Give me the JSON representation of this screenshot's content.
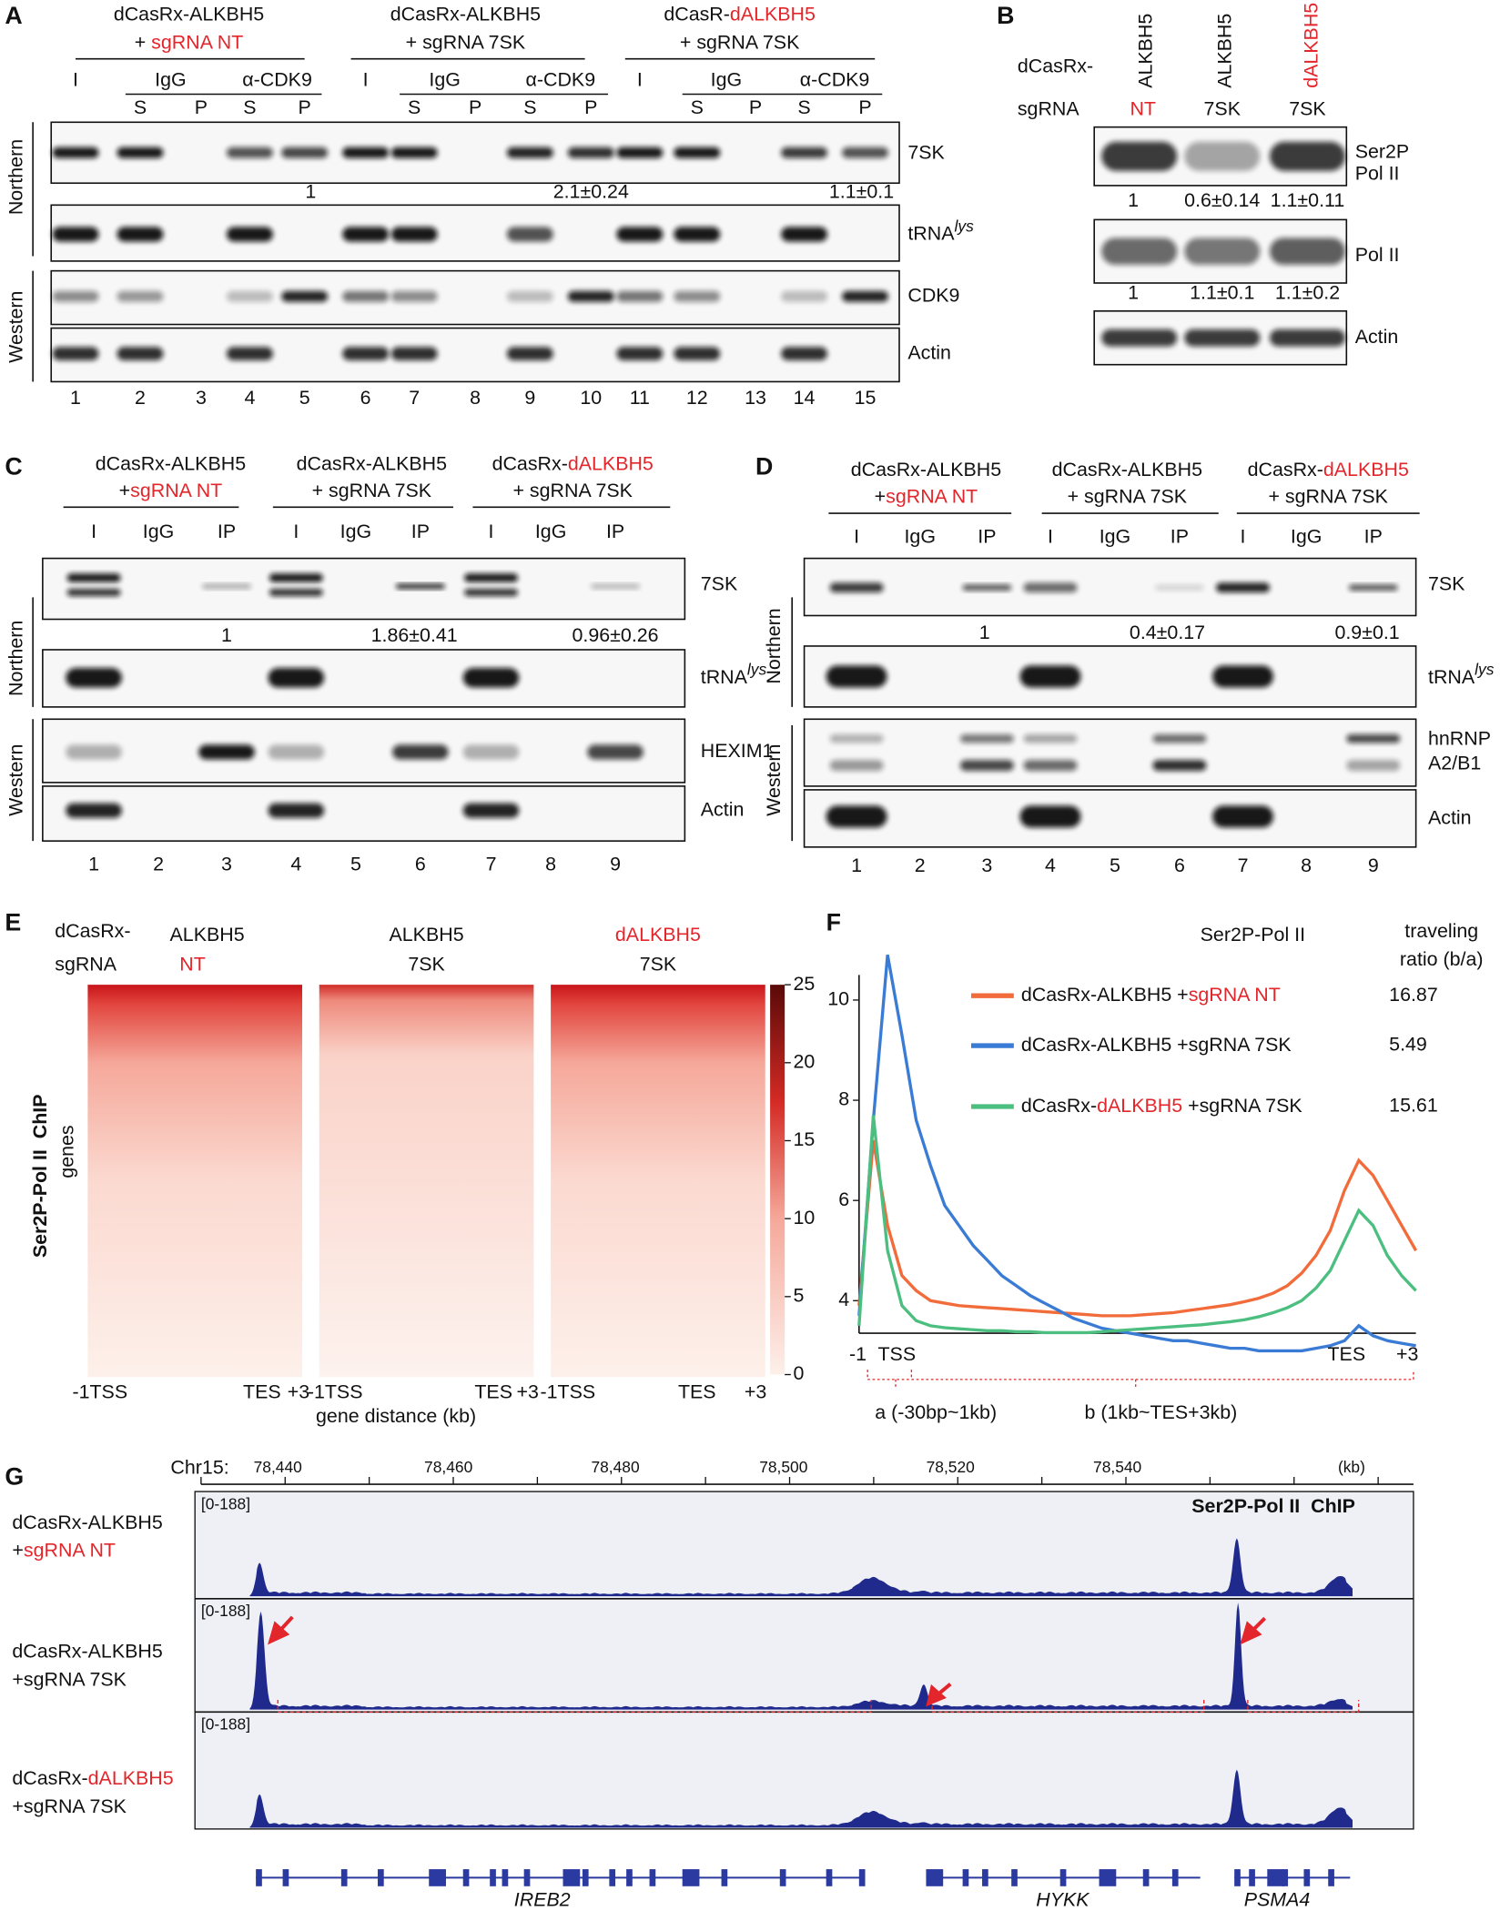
{
  "figure": {
    "A": {
      "label": "A",
      "groups": [
        {
          "line1": [
            "dCasRx-ALKBH5"
          ],
          "line2": [
            "+ ",
            "sgRNA NT"
          ]
        },
        {
          "line1": [
            "dCasRx-ALKBH5"
          ],
          "line2": [
            "+ sgRNA 7SK"
          ]
        },
        {
          "line1": [
            "dCasR-",
            "dALKBH5"
          ],
          "line2": [
            "+ sgRNA 7SK"
          ]
        }
      ],
      "cols": {
        "input": "I",
        "igg": "IgG",
        "ip": "α-CDK9",
        "s": "S",
        "p": "P"
      },
      "blots": {
        "b7sk": "7SK",
        "trna": [
          "tRNA",
          "lys"
        ],
        "cdk9": "CDK9",
        "actin": "Actin"
      },
      "quant": [
        "1",
        "2.1±0.24",
        "1.1±0.1"
      ],
      "side": [
        "Northern",
        "Western"
      ],
      "lanes": [
        1,
        2,
        3,
        4,
        5,
        6,
        7,
        8,
        9,
        10,
        11,
        12,
        13,
        14,
        15
      ]
    },
    "B": {
      "label": "B",
      "cols": [
        "ALKBH5",
        "ALKBH5",
        "dALKBH5"
      ],
      "rows": [
        "dCasRx-",
        "sgRNA"
      ],
      "sgrna": [
        "NT",
        "7SK",
        "7SK"
      ],
      "blots": {
        "ser2p": [
          "Ser2P",
          "Pol II"
        ],
        "pol2": "Pol II",
        "actin": "Actin"
      },
      "quant_ser2p": [
        "1",
        "0.6±0.14",
        "1.1±0.11"
      ],
      "quant_pol2": [
        "1",
        "1.1±0.1",
        "1.1±0.2"
      ]
    },
    "C": {
      "label": "C",
      "groups": [
        {
          "line1": [
            "dCasRx-ALKBH5"
          ],
          "line2": [
            "+",
            "sgRNA NT"
          ]
        },
        {
          "line1": [
            "dCasRx-ALKBH5"
          ],
          "line2": [
            "+ sgRNA 7SK"
          ]
        },
        {
          "line1": [
            "dCasRx-",
            "dALKBH5"
          ],
          "line2": [
            "+ sgRNA 7SK"
          ]
        }
      ],
      "cols": [
        "I",
        "IgG",
        "IP"
      ],
      "blots": {
        "b7sk": "7SK",
        "trna": [
          "tRNA",
          "lys"
        ],
        "hexim": "HEXIM1",
        "actin": "Actin"
      },
      "quant": [
        "1",
        "1.86±0.41",
        "0.96±0.26"
      ],
      "side": [
        "Northern",
        "Western"
      ],
      "lanes": [
        1,
        2,
        3,
        4,
        5,
        6,
        7,
        8,
        9
      ]
    },
    "D": {
      "label": "D",
      "groups": [
        {
          "line1": [
            "dCasRx-ALKBH5"
          ],
          "line2": [
            "+",
            "sgRNA NT"
          ]
        },
        {
          "line1": [
            "dCasRx-ALKBH5"
          ],
          "line2": [
            "+ sgRNA 7SK"
          ]
        },
        {
          "line1": [
            "dCasRx-",
            "dALKBH5"
          ],
          "line2": [
            "+ sgRNA 7SK"
          ]
        }
      ],
      "cols": [
        "I",
        "IgG",
        "IP"
      ],
      "blots": {
        "b7sk": "7SK",
        "trna": [
          "tRNA",
          "lys"
        ],
        "hnrnp": [
          "hnRNP",
          "A2/B1"
        ],
        "actin": "Actin"
      },
      "quant": [
        "1",
        "0.4±0.17",
        "0.9±0.1"
      ],
      "side": [
        "Northern",
        "Western"
      ],
      "lanes": [
        1,
        2,
        3,
        4,
        5,
        6,
        7,
        8,
        9
      ]
    },
    "E": {
      "label": "E",
      "rows": [
        "dCasRx-",
        "sgRNA"
      ],
      "cols": [
        [
          "ALKBH5",
          "NT"
        ],
        [
          "ALKBH5",
          "7SK"
        ],
        [
          "dALKBH5",
          "7SK"
        ]
      ],
      "ylabel": [
        "Ser2P-Pol II  ChIP",
        "genes"
      ],
      "x_labels": {
        "start": "-1TSS",
        "tes": "TES",
        "end": "+3"
      },
      "xlabel": "gene distance (kb)",
      "colorbar": {
        "lim": [
          0,
          25
        ],
        "ticks": [
          0,
          5,
          10,
          15,
          20,
          25
        ]
      }
    },
    "F": {
      "label": "F",
      "title": "Ser2P-Pol II",
      "ratio_header": [
        "traveling",
        "ratio (b/a)"
      ],
      "chart": {
        "type": "line",
        "ylim": [
          3.4,
          10.5
        ],
        "yticks": [
          4,
          6,
          8,
          10
        ],
        "xlabels": [
          "-1",
          "TSS",
          "TES",
          "+3"
        ],
        "series": [
          {
            "name": [
              "dCasRx-ALKBH5 +",
              "sgRNA NT"
            ],
            "color": "#f26b3a",
            "ratio": 16.87,
            "values": [
              3.9,
              7.2,
              5.5,
              4.5,
              4.2,
              4.0,
              3.95,
              3.9,
              3.88,
              3.86,
              3.84,
              3.82,
              3.8,
              3.78,
              3.76,
              3.74,
              3.72,
              3.7,
              3.7,
              3.7,
              3.72,
              3.74,
              3.76,
              3.8,
              3.84,
              3.88,
              3.92,
              3.98,
              4.05,
              4.15,
              4.3,
              4.55,
              4.9,
              5.4,
              6.2,
              6.8,
              6.5,
              6.0,
              5.5,
              5.0
            ]
          },
          {
            "name": [
              "dCasRx-ALKBH5 +sgRNA 7SK"
            ],
            "color": "#3a7bd5",
            "ratio": 5.49,
            "values": [
              3.7,
              7.6,
              10.9,
              9.3,
              7.6,
              6.7,
              5.9,
              5.5,
              5.1,
              4.8,
              4.5,
              4.3,
              4.1,
              3.95,
              3.8,
              3.65,
              3.55,
              3.45,
              3.4,
              3.35,
              3.3,
              3.25,
              3.2,
              3.2,
              3.15,
              3.1,
              3.05,
              3.05,
              3.0,
              3.0,
              3.0,
              3.0,
              3.05,
              3.1,
              3.2,
              3.5,
              3.3,
              3.2,
              3.15,
              3.1
            ]
          },
          {
            "name": [
              "dCasRx-",
              "dALKBH5",
              " +sgRNA 7SK"
            ],
            "color": "#4cbf80",
            "ratio": 15.61,
            "values": [
              3.5,
              7.7,
              5.0,
              3.9,
              3.6,
              3.5,
              3.46,
              3.44,
              3.42,
              3.4,
              3.4,
              3.38,
              3.38,
              3.36,
              3.36,
              3.36,
              3.36,
              3.38,
              3.4,
              3.42,
              3.44,
              3.46,
              3.48,
              3.5,
              3.52,
              3.55,
              3.58,
              3.62,
              3.68,
              3.76,
              3.86,
              4.0,
              4.25,
              4.6,
              5.2,
              5.8,
              5.5,
              4.9,
              4.5,
              4.2
            ]
          }
        ]
      },
      "regions": [
        "a (-30bp~1kb)",
        "b (1kb~TES+3kb)"
      ]
    },
    "G": {
      "label": "G",
      "chrom": "Chr15:",
      "ticks": [
        "78,440",
        "78,460",
        "78,480",
        "78,500",
        "78,520",
        "78,540"
      ],
      "unit": "(kb)",
      "title": "Ser2P-Pol II  ChIP",
      "range": "[0-188]",
      "tracks": [
        {
          "line1": [
            "dCasRx-ALKBH5"
          ],
          "line2": [
            "+",
            "sgRNA NT"
          ]
        },
        {
          "line1": [
            "dCasRx-ALKBH5"
          ],
          "line2": [
            "+sgRNA 7SK"
          ]
        },
        {
          "line1": [
            "dCasRx-",
            "dALKBH5"
          ],
          "line2": [
            "+sgRNA 7SK"
          ]
        }
      ],
      "genes": [
        "IREB2",
        "HYKK",
        "PSMA4"
      ]
    }
  }
}
